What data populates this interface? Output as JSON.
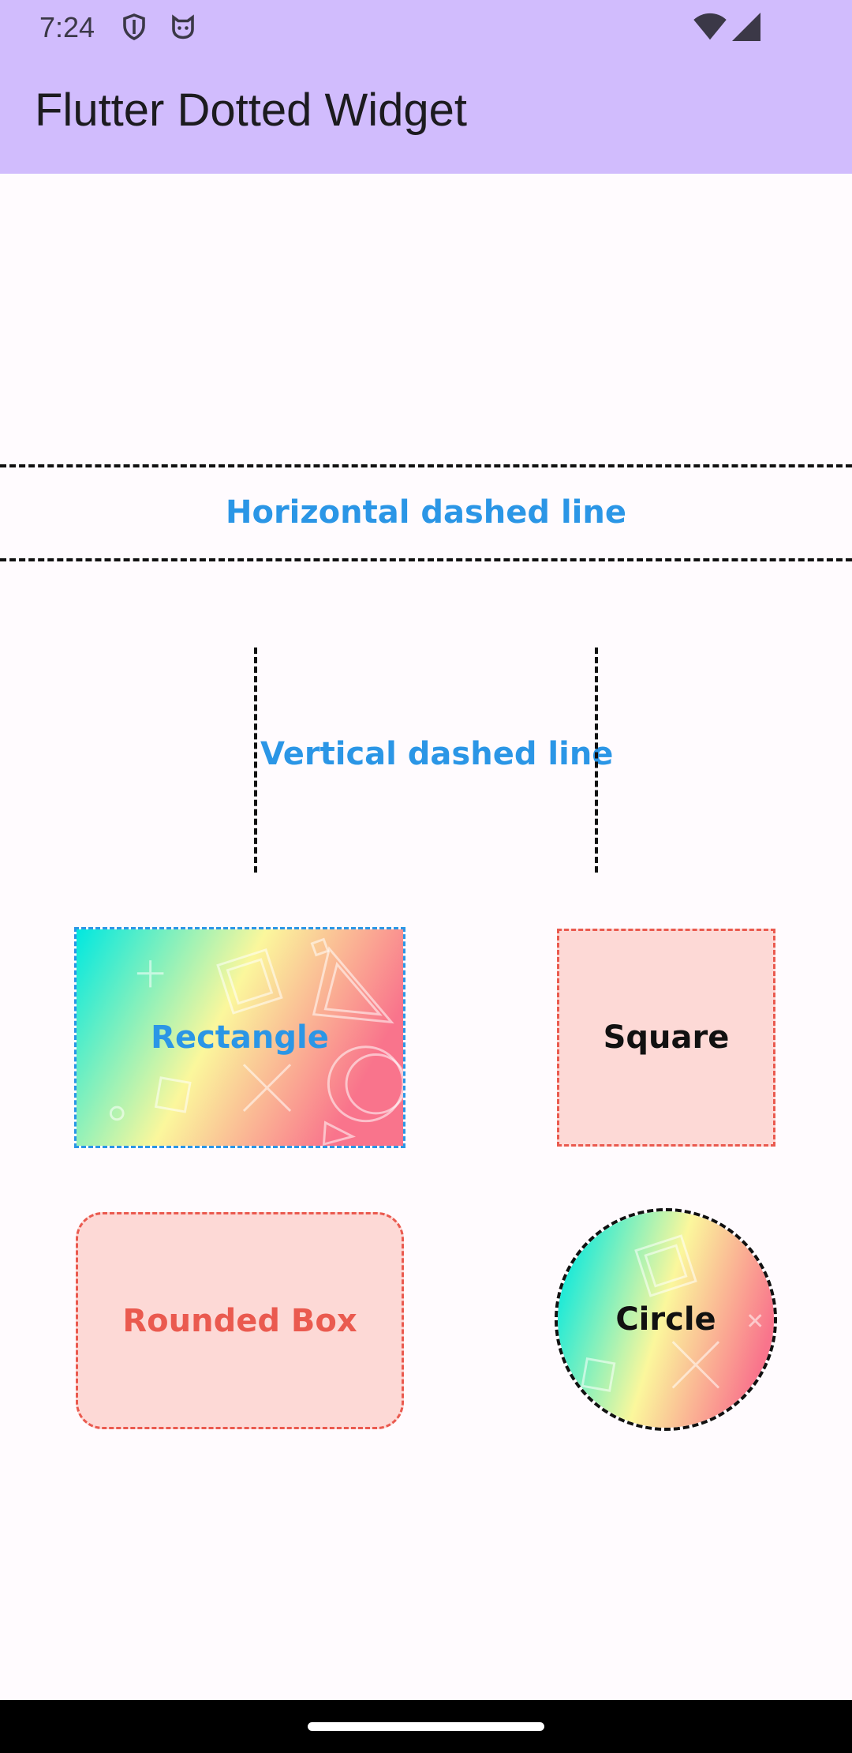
{
  "status_bar": {
    "time": "7:24",
    "icons_left": [
      "shield-icon",
      "cat-face-icon"
    ],
    "icons_right": [
      "wifi-icon",
      "cellular-signal-icon"
    ]
  },
  "app_bar": {
    "title": "Flutter Dotted Widget",
    "color": "#d1bcfd"
  },
  "content": {
    "horizontal_label": "Horizontal dashed line",
    "vertical_label": "Vertical dashed line",
    "rectangle_label": "Rectangle",
    "square_label": "Square",
    "rounded_label": "Rounded Box",
    "circle_label": "Circle"
  },
  "colors": {
    "accent_blue": "#2b96e6",
    "accent_red": "#ea5a4f",
    "box_fill": "#fdd9d6",
    "gradient_cyan": "#00e8e0",
    "gradient_yellow": "#fbf79c",
    "gradient_pink": "#f9748c"
  },
  "nav_bar": {
    "icon": "home-gesture-handle"
  }
}
